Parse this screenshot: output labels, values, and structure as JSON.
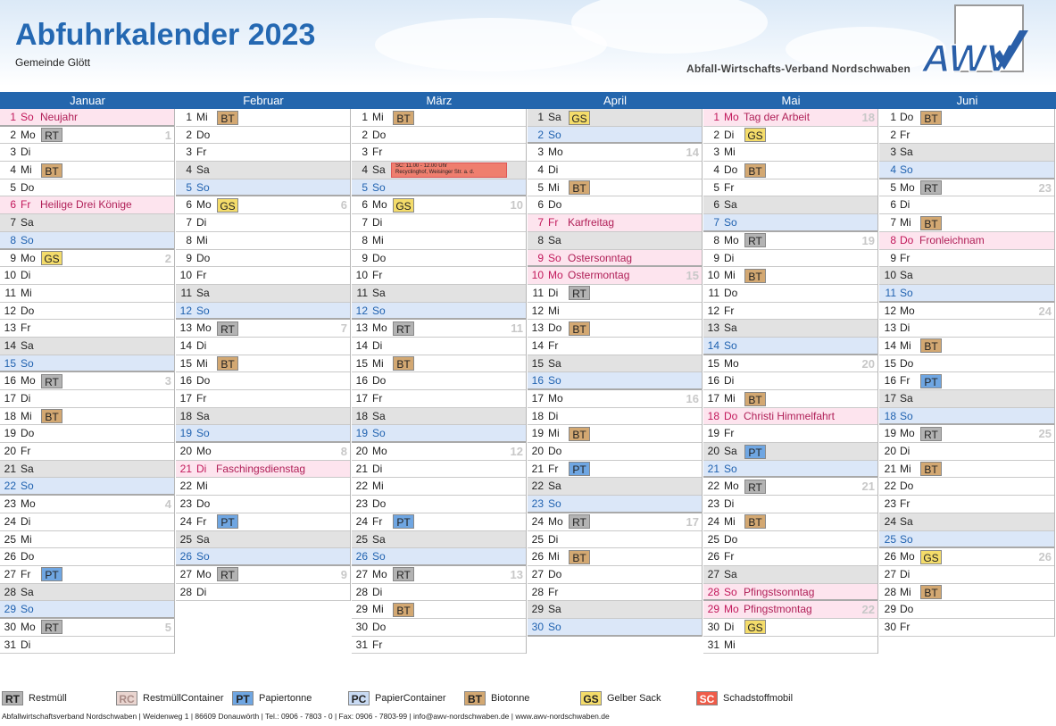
{
  "header": {
    "title": "Abfuhrkalender 2023",
    "subtitle": "Gemeinde Glött",
    "org": "Abfall-Wirtschafts-Verband  Nordschwaben",
    "logo_text": "AWV"
  },
  "colors": {
    "RT": "#b3b3b3",
    "RC": "#e9d5d0",
    "PT": "#6fa6e2",
    "PC": "#c9dbf4",
    "BT": "#d3a872",
    "GS": "#f4dc6a",
    "SC": "#ef5c49",
    "month_bar": "#2466ad",
    "title": "#2468b2"
  },
  "months": [
    {
      "name": "Januar",
      "days": [
        {
          "d": "1",
          "w": "So",
          "type": "hol",
          "holiday": "Neujahr"
        },
        {
          "d": "2",
          "w": "Mo",
          "badge": "RT",
          "kw": "1"
        },
        {
          "d": "3",
          "w": "Di"
        },
        {
          "d": "4",
          "w": "Mi",
          "badge": "BT"
        },
        {
          "d": "5",
          "w": "Do"
        },
        {
          "d": "6",
          "w": "Fr",
          "type": "hol",
          "holiday": "Heilige Drei Könige"
        },
        {
          "d": "7",
          "w": "Sa",
          "type": "sat"
        },
        {
          "d": "8",
          "w": "So",
          "type": "sun"
        },
        {
          "d": "9",
          "w": "Mo",
          "badge": "GS",
          "kw": "2"
        },
        {
          "d": "10",
          "w": "Di"
        },
        {
          "d": "11",
          "w": "Mi"
        },
        {
          "d": "12",
          "w": "Do"
        },
        {
          "d": "13",
          "w": "Fr"
        },
        {
          "d": "14",
          "w": "Sa",
          "type": "sat"
        },
        {
          "d": "15",
          "w": "So",
          "type": "sun"
        },
        {
          "d": "16",
          "w": "Mo",
          "badge": "RT",
          "kw": "3"
        },
        {
          "d": "17",
          "w": "Di"
        },
        {
          "d": "18",
          "w": "Mi",
          "badge": "BT"
        },
        {
          "d": "19",
          "w": "Do"
        },
        {
          "d": "20",
          "w": "Fr"
        },
        {
          "d": "21",
          "w": "Sa",
          "type": "sat"
        },
        {
          "d": "22",
          "w": "So",
          "type": "sun"
        },
        {
          "d": "23",
          "w": "Mo",
          "kw": "4"
        },
        {
          "d": "24",
          "w": "Di"
        },
        {
          "d": "25",
          "w": "Mi"
        },
        {
          "d": "26",
          "w": "Do"
        },
        {
          "d": "27",
          "w": "Fr",
          "badge": "PT"
        },
        {
          "d": "28",
          "w": "Sa",
          "type": "sat"
        },
        {
          "d": "29",
          "w": "So",
          "type": "sun"
        },
        {
          "d": "30",
          "w": "Mo",
          "badge": "RT",
          "kw": "5"
        },
        {
          "d": "31",
          "w": "Di"
        }
      ]
    },
    {
      "name": "Februar",
      "days": [
        {
          "d": "1",
          "w": "Mi",
          "badge": "BT"
        },
        {
          "d": "2",
          "w": "Do"
        },
        {
          "d": "3",
          "w": "Fr"
        },
        {
          "d": "4",
          "w": "Sa",
          "type": "sat"
        },
        {
          "d": "5",
          "w": "So",
          "type": "sun"
        },
        {
          "d": "6",
          "w": "Mo",
          "badge": "GS",
          "kw": "6"
        },
        {
          "d": "7",
          "w": "Di"
        },
        {
          "d": "8",
          "w": "Mi"
        },
        {
          "d": "9",
          "w": "Do"
        },
        {
          "d": "10",
          "w": "Fr"
        },
        {
          "d": "11",
          "w": "Sa",
          "type": "sat"
        },
        {
          "d": "12",
          "w": "So",
          "type": "sun"
        },
        {
          "d": "13",
          "w": "Mo",
          "badge": "RT",
          "kw": "7"
        },
        {
          "d": "14",
          "w": "Di"
        },
        {
          "d": "15",
          "w": "Mi",
          "badge": "BT"
        },
        {
          "d": "16",
          "w": "Do"
        },
        {
          "d": "17",
          "w": "Fr"
        },
        {
          "d": "18",
          "w": "Sa",
          "type": "sat"
        },
        {
          "d": "19",
          "w": "So",
          "type": "sun"
        },
        {
          "d": "20",
          "w": "Mo",
          "kw": "8"
        },
        {
          "d": "21",
          "w": "Di",
          "type": "hol",
          "holiday": "Faschingsdienstag"
        },
        {
          "d": "22",
          "w": "Mi"
        },
        {
          "d": "23",
          "w": "Do"
        },
        {
          "d": "24",
          "w": "Fr",
          "badge": "PT"
        },
        {
          "d": "25",
          "w": "Sa",
          "type": "sat"
        },
        {
          "d": "26",
          "w": "So",
          "type": "sun"
        },
        {
          "d": "27",
          "w": "Mo",
          "badge": "RT",
          "kw": "9"
        },
        {
          "d": "28",
          "w": "Di"
        }
      ]
    },
    {
      "name": "März",
      "days": [
        {
          "d": "1",
          "w": "Mi",
          "badge": "BT"
        },
        {
          "d": "2",
          "w": "Do"
        },
        {
          "d": "3",
          "w": "Fr"
        },
        {
          "d": "4",
          "w": "Sa",
          "type": "sat",
          "sc_note1": "SC: 11.00 - 12.00 Uhr",
          "sc_note2": "Recyclinghof, Weisinger Str. a. d."
        },
        {
          "d": "5",
          "w": "So",
          "type": "sun"
        },
        {
          "d": "6",
          "w": "Mo",
          "badge": "GS",
          "kw": "10"
        },
        {
          "d": "7",
          "w": "Di"
        },
        {
          "d": "8",
          "w": "Mi"
        },
        {
          "d": "9",
          "w": "Do"
        },
        {
          "d": "10",
          "w": "Fr"
        },
        {
          "d": "11",
          "w": "Sa",
          "type": "sat"
        },
        {
          "d": "12",
          "w": "So",
          "type": "sun"
        },
        {
          "d": "13",
          "w": "Mo",
          "badge": "RT",
          "kw": "11"
        },
        {
          "d": "14",
          "w": "Di"
        },
        {
          "d": "15",
          "w": "Mi",
          "badge": "BT"
        },
        {
          "d": "16",
          "w": "Do"
        },
        {
          "d": "17",
          "w": "Fr"
        },
        {
          "d": "18",
          "w": "Sa",
          "type": "sat"
        },
        {
          "d": "19",
          "w": "So",
          "type": "sun"
        },
        {
          "d": "20",
          "w": "Mo",
          "kw": "12"
        },
        {
          "d": "21",
          "w": "Di"
        },
        {
          "d": "22",
          "w": "Mi"
        },
        {
          "d": "23",
          "w": "Do"
        },
        {
          "d": "24",
          "w": "Fr",
          "badge": "PT"
        },
        {
          "d": "25",
          "w": "Sa",
          "type": "sat"
        },
        {
          "d": "26",
          "w": "So",
          "type": "sun"
        },
        {
          "d": "27",
          "w": "Mo",
          "badge": "RT",
          "kw": "13"
        },
        {
          "d": "28",
          "w": "Di"
        },
        {
          "d": "29",
          "w": "Mi",
          "badge": "BT"
        },
        {
          "d": "30",
          "w": "Do"
        },
        {
          "d": "31",
          "w": "Fr"
        }
      ]
    },
    {
      "name": "April",
      "days": [
        {
          "d": "1",
          "w": "Sa",
          "type": "sat",
          "badge": "GS"
        },
        {
          "d": "2",
          "w": "So",
          "type": "sun"
        },
        {
          "d": "3",
          "w": "Mo",
          "kw": "14"
        },
        {
          "d": "4",
          "w": "Di"
        },
        {
          "d": "5",
          "w": "Mi",
          "badge": "BT"
        },
        {
          "d": "6",
          "w": "Do"
        },
        {
          "d": "7",
          "w": "Fr",
          "type": "hol",
          "holiday": "Karfreitag"
        },
        {
          "d": "8",
          "w": "Sa",
          "type": "sat"
        },
        {
          "d": "9",
          "w": "So",
          "type": "hol",
          "holiday": "Ostersonntag"
        },
        {
          "d": "10",
          "w": "Mo",
          "type": "hol",
          "holiday": "Ostermontag",
          "kw": "15"
        },
        {
          "d": "11",
          "w": "Di",
          "badge": "RT"
        },
        {
          "d": "12",
          "w": "Mi"
        },
        {
          "d": "13",
          "w": "Do",
          "badge": "BT"
        },
        {
          "d": "14",
          "w": "Fr"
        },
        {
          "d": "15",
          "w": "Sa",
          "type": "sat"
        },
        {
          "d": "16",
          "w": "So",
          "type": "sun"
        },
        {
          "d": "17",
          "w": "Mo",
          "kw": "16"
        },
        {
          "d": "18",
          "w": "Di"
        },
        {
          "d": "19",
          "w": "Mi",
          "badge": "BT"
        },
        {
          "d": "20",
          "w": "Do"
        },
        {
          "d": "21",
          "w": "Fr",
          "badge": "PT"
        },
        {
          "d": "22",
          "w": "Sa",
          "type": "sat"
        },
        {
          "d": "23",
          "w": "So",
          "type": "sun"
        },
        {
          "d": "24",
          "w": "Mo",
          "badge": "RT",
          "kw": "17"
        },
        {
          "d": "25",
          "w": "Di"
        },
        {
          "d": "26",
          "w": "Mi",
          "badge": "BT"
        },
        {
          "d": "27",
          "w": "Do"
        },
        {
          "d": "28",
          "w": "Fr"
        },
        {
          "d": "29",
          "w": "Sa",
          "type": "sat"
        },
        {
          "d": "30",
          "w": "So",
          "type": "sun"
        }
      ]
    },
    {
      "name": "Mai",
      "days": [
        {
          "d": "1",
          "w": "Mo",
          "type": "hol",
          "holiday": "Tag der Arbeit",
          "kw": "18"
        },
        {
          "d": "2",
          "w": "Di",
          "badge": "GS"
        },
        {
          "d": "3",
          "w": "Mi"
        },
        {
          "d": "4",
          "w": "Do",
          "badge": "BT"
        },
        {
          "d": "5",
          "w": "Fr"
        },
        {
          "d": "6",
          "w": "Sa",
          "type": "sat"
        },
        {
          "d": "7",
          "w": "So",
          "type": "sun"
        },
        {
          "d": "8",
          "w": "Mo",
          "badge": "RT",
          "kw": "19"
        },
        {
          "d": "9",
          "w": "Di"
        },
        {
          "d": "10",
          "w": "Mi",
          "badge": "BT"
        },
        {
          "d": "11",
          "w": "Do"
        },
        {
          "d": "12",
          "w": "Fr"
        },
        {
          "d": "13",
          "w": "Sa",
          "type": "sat"
        },
        {
          "d": "14",
          "w": "So",
          "type": "sun"
        },
        {
          "d": "15",
          "w": "Mo",
          "kw": "20"
        },
        {
          "d": "16",
          "w": "Di"
        },
        {
          "d": "17",
          "w": "Mi",
          "badge": "BT"
        },
        {
          "d": "18",
          "w": "Do",
          "type": "hol",
          "holiday": "Christi Himmelfahrt"
        },
        {
          "d": "19",
          "w": "Fr"
        },
        {
          "d": "20",
          "w": "Sa",
          "type": "sat",
          "badge": "PT"
        },
        {
          "d": "21",
          "w": "So",
          "type": "sun"
        },
        {
          "d": "22",
          "w": "Mo",
          "badge": "RT",
          "kw": "21"
        },
        {
          "d": "23",
          "w": "Di"
        },
        {
          "d": "24",
          "w": "Mi",
          "badge": "BT"
        },
        {
          "d": "25",
          "w": "Do"
        },
        {
          "d": "26",
          "w": "Fr"
        },
        {
          "d": "27",
          "w": "Sa",
          "type": "sat"
        },
        {
          "d": "28",
          "w": "So",
          "type": "hol",
          "holiday": "Pfingstsonntag"
        },
        {
          "d": "29",
          "w": "Mo",
          "type": "hol",
          "holiday": "Pfingstmontag",
          "kw": "22"
        },
        {
          "d": "30",
          "w": "Di",
          "badge": "GS"
        },
        {
          "d": "31",
          "w": "Mi"
        }
      ]
    },
    {
      "name": "Juni",
      "days": [
        {
          "d": "1",
          "w": "Do",
          "badge": "BT"
        },
        {
          "d": "2",
          "w": "Fr"
        },
        {
          "d": "3",
          "w": "Sa",
          "type": "sat"
        },
        {
          "d": "4",
          "w": "So",
          "type": "sun"
        },
        {
          "d": "5",
          "w": "Mo",
          "badge": "RT",
          "kw": "23"
        },
        {
          "d": "6",
          "w": "Di"
        },
        {
          "d": "7",
          "w": "Mi",
          "badge": "BT"
        },
        {
          "d": "8",
          "w": "Do",
          "type": "hol",
          "holiday": "Fronleichnam"
        },
        {
          "d": "9",
          "w": "Fr"
        },
        {
          "d": "10",
          "w": "Sa",
          "type": "sat"
        },
        {
          "d": "11",
          "w": "So",
          "type": "sun"
        },
        {
          "d": "12",
          "w": "Mo",
          "kw": "24"
        },
        {
          "d": "13",
          "w": "Di"
        },
        {
          "d": "14",
          "w": "Mi",
          "badge": "BT"
        },
        {
          "d": "15",
          "w": "Do"
        },
        {
          "d": "16",
          "w": "Fr",
          "badge": "PT"
        },
        {
          "d": "17",
          "w": "Sa",
          "type": "sat"
        },
        {
          "d": "18",
          "w": "So",
          "type": "sun"
        },
        {
          "d": "19",
          "w": "Mo",
          "badge": "RT",
          "kw": "25"
        },
        {
          "d": "20",
          "w": "Di"
        },
        {
          "d": "21",
          "w": "Mi",
          "badge": "BT"
        },
        {
          "d": "22",
          "w": "Do"
        },
        {
          "d": "23",
          "w": "Fr"
        },
        {
          "d": "24",
          "w": "Sa",
          "type": "sat"
        },
        {
          "d": "25",
          "w": "So",
          "type": "sun"
        },
        {
          "d": "26",
          "w": "Mo",
          "badge": "GS",
          "kw": "26"
        },
        {
          "d": "27",
          "w": "Di"
        },
        {
          "d": "28",
          "w": "Mi",
          "badge": "BT"
        },
        {
          "d": "29",
          "w": "Do"
        },
        {
          "d": "30",
          "w": "Fr"
        }
      ]
    }
  ],
  "legend": [
    {
      "code": "RT",
      "label": "Restmüll"
    },
    {
      "code": "RC",
      "label": "RestmüllContainer"
    },
    {
      "code": "PT",
      "label": "Papiertonne"
    },
    {
      "code": "PC",
      "label": "PapierContainer"
    },
    {
      "code": "BT",
      "label": "Biotonne"
    },
    {
      "code": "GS",
      "label": "Gelber Sack"
    },
    {
      "code": "SC",
      "label": "Schadstoffmobil"
    }
  ],
  "footer": "Abfallwirtschaftsverband Nordschwaben | Weidenweg 1 | 86609 Donauwörth | Tel.: 0906 - 7803 - 0 | Fax: 0906 - 7803-99 | info@awv-nordschwaben.de | www.awv-nordschwaben.de"
}
